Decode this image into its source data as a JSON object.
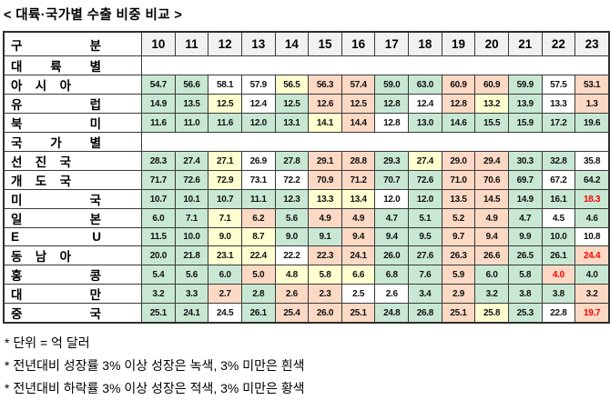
{
  "title": "< 대륙·국가별 수출 비중 비교 >",
  "table": {
    "category_header": "구 분",
    "years": [
      "10",
      "11",
      "12",
      "13",
      "14",
      "15",
      "16",
      "17",
      "18",
      "19",
      "20",
      "21",
      "22",
      "23"
    ],
    "rows": [
      {
        "type": "section",
        "label": "대 륙 별"
      },
      {
        "type": "data",
        "label": "아 시 아",
        "cells": [
          [
            "54.7",
            "g"
          ],
          [
            "56.6",
            "g"
          ],
          [
            "58.1",
            "w"
          ],
          [
            "57.9",
            "w"
          ],
          [
            "56.5",
            "y"
          ],
          [
            "56.3",
            "p"
          ],
          [
            "57.4",
            "p"
          ],
          [
            "59.0",
            "g"
          ],
          [
            "63.0",
            "g"
          ],
          [
            "60.9",
            "p"
          ],
          [
            "60.9",
            "p"
          ],
          [
            "59.9",
            "g"
          ],
          [
            "57.5",
            "w"
          ],
          [
            "53.1",
            "p"
          ]
        ]
      },
      {
        "type": "data",
        "label": "유 럽",
        "cells": [
          [
            "14.9",
            "g"
          ],
          [
            "13.5",
            "g"
          ],
          [
            "12.5",
            "y"
          ],
          [
            "12.4",
            "w"
          ],
          [
            "12.5",
            "g"
          ],
          [
            "12.6",
            "p"
          ],
          [
            "12.5",
            "p"
          ],
          [
            "12.8",
            "g"
          ],
          [
            "12.4",
            "w"
          ],
          [
            "12.8",
            "p"
          ],
          [
            "13.2",
            "y"
          ],
          [
            "13.9",
            "g"
          ],
          [
            "13.3",
            "w"
          ],
          [
            "1.3",
            "p"
          ]
        ]
      },
      {
        "type": "data",
        "label": "북 미",
        "cells": [
          [
            "11.6",
            "g"
          ],
          [
            "11.0",
            "g"
          ],
          [
            "11.6",
            "g"
          ],
          [
            "12.0",
            "g"
          ],
          [
            "13.1",
            "g"
          ],
          [
            "14.1",
            "y"
          ],
          [
            "14.4",
            "p"
          ],
          [
            "12.8",
            "w"
          ],
          [
            "13.0",
            "g"
          ],
          [
            "14.6",
            "g"
          ],
          [
            "15.5",
            "g"
          ],
          [
            "15.9",
            "g"
          ],
          [
            "17.2",
            "g"
          ],
          [
            "19.6",
            "g"
          ]
        ]
      },
      {
        "type": "section",
        "label": "국 가 별"
      },
      {
        "type": "data",
        "label": "선 진 국",
        "cells": [
          [
            "28.3",
            "g"
          ],
          [
            "27.4",
            "g"
          ],
          [
            "27.1",
            "y"
          ],
          [
            "26.9",
            "w"
          ],
          [
            "27.8",
            "g"
          ],
          [
            "29.1",
            "p"
          ],
          [
            "28.8",
            "p"
          ],
          [
            "29.3",
            "g"
          ],
          [
            "27.4",
            "y"
          ],
          [
            "29.0",
            "p"
          ],
          [
            "29.4",
            "p"
          ],
          [
            "30.3",
            "g"
          ],
          [
            "32.8",
            "g"
          ],
          [
            "35.8",
            "w"
          ]
        ]
      },
      {
        "type": "data",
        "label": "개 도 국",
        "cells": [
          [
            "71.7",
            "g"
          ],
          [
            "72.6",
            "g"
          ],
          [
            "72.9",
            "y"
          ],
          [
            "73.1",
            "w"
          ],
          [
            "72.2",
            "w"
          ],
          [
            "70.9",
            "p"
          ],
          [
            "71.2",
            "p"
          ],
          [
            "70.7",
            "g"
          ],
          [
            "72.6",
            "g"
          ],
          [
            "71.0",
            "p"
          ],
          [
            "70.6",
            "p"
          ],
          [
            "69.7",
            "g"
          ],
          [
            "67.2",
            "w"
          ],
          [
            "64.2",
            "g"
          ]
        ]
      },
      {
        "type": "data",
        "label": "미 국",
        "cells": [
          [
            "10.7",
            "g"
          ],
          [
            "10.1",
            "g"
          ],
          [
            "10.7",
            "g"
          ],
          [
            "11.1",
            "g"
          ],
          [
            "12.3",
            "g"
          ],
          [
            "13.3",
            "y"
          ],
          [
            "13.4",
            "y"
          ],
          [
            "12.0",
            "w"
          ],
          [
            "12.0",
            "g"
          ],
          [
            "13.5",
            "p"
          ],
          [
            "14.5",
            "p"
          ],
          [
            "14.9",
            "g"
          ],
          [
            "16.1",
            "g"
          ],
          [
            "18.3",
            "g",
            "r"
          ]
        ]
      },
      {
        "type": "data",
        "label": "일 본",
        "cells": [
          [
            "6.0",
            "g"
          ],
          [
            "7.1",
            "g"
          ],
          [
            "7.1",
            "y"
          ],
          [
            "6.2",
            "p"
          ],
          [
            "5.6",
            "g"
          ],
          [
            "4.9",
            "p"
          ],
          [
            "4.9",
            "p"
          ],
          [
            "4.7",
            "g"
          ],
          [
            "5.1",
            "g"
          ],
          [
            "5.2",
            "p"
          ],
          [
            "4.9",
            "p"
          ],
          [
            "4.7",
            "g"
          ],
          [
            "4.5",
            "w"
          ],
          [
            "4.6",
            "g"
          ]
        ]
      },
      {
        "type": "data",
        "label": "E U",
        "cells": [
          [
            "11.5",
            "g"
          ],
          [
            "10.0",
            "g"
          ],
          [
            "9.0",
            "y"
          ],
          [
            "8.7",
            "y"
          ],
          [
            "9.0",
            "g"
          ],
          [
            "9.1",
            "g"
          ],
          [
            "9.4",
            "p"
          ],
          [
            "9.4",
            "g"
          ],
          [
            "9.5",
            "g"
          ],
          [
            "9.7",
            "p"
          ],
          [
            "9.4",
            "p"
          ],
          [
            "9.9",
            "g"
          ],
          [
            "10.0",
            "g"
          ],
          [
            "10.8",
            "w"
          ]
        ]
      },
      {
        "type": "data",
        "label": "동 남 아",
        "cells": [
          [
            "20.0",
            "g"
          ],
          [
            "21.8",
            "g"
          ],
          [
            "23.1",
            "y"
          ],
          [
            "22.4",
            "y"
          ],
          [
            "22.2",
            "w"
          ],
          [
            "22.3",
            "p"
          ],
          [
            "24.1",
            "p"
          ],
          [
            "26.0",
            "g"
          ],
          [
            "27.6",
            "g"
          ],
          [
            "26.3",
            "p"
          ],
          [
            "26.6",
            "p"
          ],
          [
            "26.5",
            "g"
          ],
          [
            "26.1",
            "g"
          ],
          [
            "24.4",
            "p",
            "r"
          ]
        ]
      },
      {
        "type": "data",
        "label": "홍 콩",
        "cells": [
          [
            "5.4",
            "g"
          ],
          [
            "5.6",
            "g"
          ],
          [
            "6.0",
            "g"
          ],
          [
            "5.0",
            "p"
          ],
          [
            "4.8",
            "y"
          ],
          [
            "5.8",
            "y"
          ],
          [
            "6.6",
            "y"
          ],
          [
            "6.8",
            "g"
          ],
          [
            "7.6",
            "g"
          ],
          [
            "5.9",
            "p"
          ],
          [
            "6.0",
            "g"
          ],
          [
            "5.8",
            "g"
          ],
          [
            "4.0",
            "p",
            "r"
          ],
          [
            "4.0",
            "g"
          ]
        ]
      },
      {
        "type": "data",
        "label": "대 만",
        "cells": [
          [
            "3.2",
            "g"
          ],
          [
            "3.3",
            "g"
          ],
          [
            "2.7",
            "p"
          ],
          [
            "2.8",
            "g"
          ],
          [
            "2.6",
            "p"
          ],
          [
            "2.3",
            "p"
          ],
          [
            "2.5",
            "w"
          ],
          [
            "2.6",
            "w"
          ],
          [
            "3.4",
            "g"
          ],
          [
            "2.9",
            "p"
          ],
          [
            "3.2",
            "g"
          ],
          [
            "3.8",
            "g"
          ],
          [
            "3.8",
            "g"
          ],
          [
            "3.2",
            "p"
          ]
        ]
      },
      {
        "type": "data",
        "label": "중 국",
        "cells": [
          [
            "25.1",
            "g"
          ],
          [
            "24.1",
            "g"
          ],
          [
            "24.5",
            "w"
          ],
          [
            "26.1",
            "g"
          ],
          [
            "25.4",
            "p"
          ],
          [
            "26.0",
            "p"
          ],
          [
            "25.1",
            "p"
          ],
          [
            "24.8",
            "g"
          ],
          [
            "26.8",
            "g"
          ],
          [
            "25.1",
            "p"
          ],
          [
            "25.8",
            "y"
          ],
          [
            "25.3",
            "g"
          ],
          [
            "22.8",
            "w"
          ],
          [
            "19.7",
            "p",
            "r"
          ]
        ]
      }
    ]
  },
  "colors": {
    "g": "#c8e8d4",
    "y": "#ffffd0",
    "p": "#fbd9c4",
    "w": "#ffffff",
    "header_bg": "#f1f1f1",
    "red_text": "#ff0000",
    "border": "#3a3a3a"
  },
  "footnotes": [
    "* 단위 = 억 달러",
    "* 전년대비 성장률 3% 이상 성장은 녹색, 3% 미만은 흰색",
    "* 전년대비 하락률 3% 이상 성장은 적색, 3% 미만은 황색"
  ]
}
